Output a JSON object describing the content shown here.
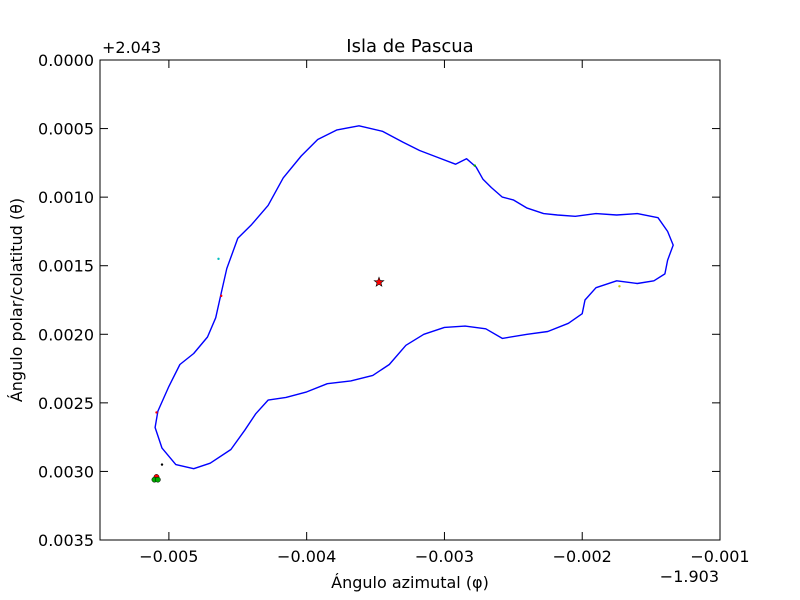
{
  "chart_data": {
    "type": "scatter",
    "title": "Isla de Pascua",
    "xlabel": "Ángulo azimutal (φ)",
    "ylabel": "Ángulo polar/colatitud (θ)",
    "x_offset_label": "−1.903",
    "y_offset_label": "+2.043",
    "xlim": [
      -0.0055,
      -0.001
    ],
    "ylim": [
      0.0035,
      0.0
    ],
    "y_inverted": true,
    "x_ticks": [
      "−0.005",
      "−0.004",
      "−0.003",
      "−0.002",
      "−0.001"
    ],
    "x_tick_values": [
      -0.005,
      -0.004,
      -0.003,
      -0.002,
      -0.001
    ],
    "y_ticks": [
      "0.0000",
      "0.0005",
      "0.0010",
      "0.0015",
      "0.0020",
      "0.0025",
      "0.0030",
      "0.0035"
    ],
    "y_tick_values": [
      0.0,
      0.0005,
      0.001,
      0.0015,
      0.002,
      0.0025,
      0.003,
      0.0035
    ],
    "grid": false,
    "legend": "none",
    "series": [
      {
        "kind": "line",
        "color": "#0000ff",
        "closed": true,
        "points": [
          [
            -0.00362,
            0.00048
          ],
          [
            -0.00345,
            0.00052
          ],
          [
            -0.0033,
            0.0006
          ],
          [
            -0.00318,
            0.00066
          ],
          [
            -0.00305,
            0.00071
          ],
          [
            -0.00292,
            0.00076
          ],
          [
            -0.00284,
            0.00072
          ],
          [
            -0.00277,
            0.00078
          ],
          [
            -0.00272,
            0.00087
          ],
          [
            -0.00266,
            0.00093
          ],
          [
            -0.00258,
            0.001
          ],
          [
            -0.0025,
            0.00102
          ],
          [
            -0.0024,
            0.00108
          ],
          [
            -0.00228,
            0.00112
          ],
          [
            -0.00218,
            0.00113
          ],
          [
            -0.00205,
            0.00114
          ],
          [
            -0.0019,
            0.00112
          ],
          [
            -0.00175,
            0.00113
          ],
          [
            -0.0016,
            0.00112
          ],
          [
            -0.00145,
            0.00115
          ],
          [
            -0.00138,
            0.00125
          ],
          [
            -0.00134,
            0.00135
          ],
          [
            -0.00138,
            0.00146
          ],
          [
            -0.0014,
            0.00156
          ],
          [
            -0.00148,
            0.00161
          ],
          [
            -0.0016,
            0.00163
          ],
          [
            -0.00175,
            0.00161
          ],
          [
            -0.0019,
            0.00166
          ],
          [
            -0.00198,
            0.00175
          ],
          [
            -0.002,
            0.00185
          ],
          [
            -0.0021,
            0.00192
          ],
          [
            -0.00225,
            0.00198
          ],
          [
            -0.0024,
            0.002
          ],
          [
            -0.00258,
            0.00203
          ],
          [
            -0.0027,
            0.00196
          ],
          [
            -0.00285,
            0.00194
          ],
          [
            -0.003,
            0.00195
          ],
          [
            -0.00315,
            0.002
          ],
          [
            -0.00328,
            0.00208
          ],
          [
            -0.0034,
            0.00222
          ],
          [
            -0.00352,
            0.0023
          ],
          [
            -0.00368,
            0.00234
          ],
          [
            -0.00385,
            0.00236
          ],
          [
            -0.004,
            0.00242
          ],
          [
            -0.00415,
            0.00246
          ],
          [
            -0.00428,
            0.00248
          ],
          [
            -0.00437,
            0.00258
          ],
          [
            -0.00445,
            0.0027
          ],
          [
            -0.00455,
            0.00284
          ],
          [
            -0.0047,
            0.00294
          ],
          [
            -0.00482,
            0.00298
          ],
          [
            -0.00495,
            0.00295
          ],
          [
            -0.00505,
            0.00283
          ],
          [
            -0.0051,
            0.00268
          ],
          [
            -0.00508,
            0.00256
          ],
          [
            -0.005,
            0.00238
          ],
          [
            -0.00492,
            0.00222
          ],
          [
            -0.00482,
            0.00214
          ],
          [
            -0.00472,
            0.00202
          ],
          [
            -0.00466,
            0.00188
          ],
          [
            -0.00462,
            0.0017
          ],
          [
            -0.00458,
            0.00152
          ],
          [
            -0.0045,
            0.0013
          ],
          [
            -0.0044,
            0.0012
          ],
          [
            -0.00428,
            0.00106
          ],
          [
            -0.00417,
            0.00086
          ],
          [
            -0.00404,
            0.0007
          ],
          [
            -0.00392,
            0.00058
          ],
          [
            -0.00378,
            0.00051
          ]
        ]
      },
      {
        "kind": "markers",
        "points": [
          {
            "x": -0.003475,
            "y": 0.00162,
            "marker": "star",
            "color": "#ff0000"
          },
          {
            "x": -0.00509,
            "y": 0.00304,
            "marker": "circle",
            "color": "#ff0000"
          },
          {
            "x": -0.005105,
            "y": 0.00306,
            "marker": "circle",
            "color": "#00aa00"
          },
          {
            "x": -0.00508,
            "y": 0.00306,
            "marker": "circle",
            "color": "#00aa00"
          },
          {
            "x": -0.00505,
            "y": 0.00295,
            "marker": "dot",
            "color": "#000000"
          },
          {
            "x": -0.00173,
            "y": 0.00165,
            "marker": "dot",
            "color": "#cccc00"
          },
          {
            "x": -0.00278,
            "y": 0.00077,
            "marker": "dot",
            "color": "#00aa00"
          },
          {
            "x": -0.00464,
            "y": 0.00145,
            "marker": "dot",
            "color": "#00bfbf"
          },
          {
            "x": -0.00462,
            "y": 0.00172,
            "marker": "dot",
            "color": "#ff0000"
          },
          {
            "x": -0.00509,
            "y": 0.00257,
            "marker": "dot",
            "color": "#ff0000"
          }
        ]
      }
    ]
  }
}
